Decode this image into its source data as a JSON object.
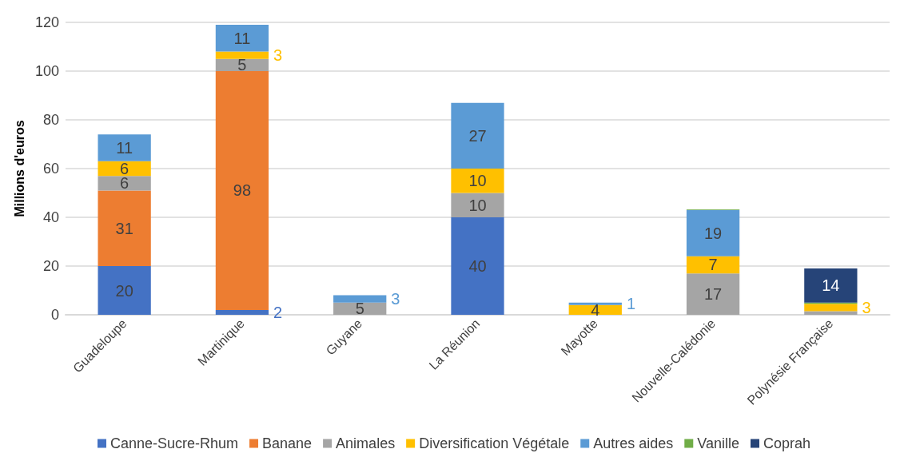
{
  "chart_data": {
    "type": "bar",
    "stacked": true,
    "ylabel": "Millions d'euros",
    "categories": [
      "Guadeloupe",
      "Martinique",
      "Guyane",
      "La Réunion",
      "Mayotte",
      "Nouvelle-Calédonie",
      "Polynésie Française"
    ],
    "series": [
      {
        "name": "Canne-Sucre-Rhum",
        "color": "#4472c4",
        "values": [
          20,
          2,
          null,
          40,
          null,
          null,
          null
        ],
        "value_labels": [
          "20",
          "2",
          null,
          "40",
          null,
          null,
          null
        ]
      },
      {
        "name": "Banane",
        "color": "#ed7d31",
        "values": [
          31,
          98,
          null,
          null,
          null,
          null,
          null
        ],
        "value_labels": [
          "31",
          "98",
          null,
          null,
          null,
          null,
          null
        ]
      },
      {
        "name": "Animales",
        "color": "#a5a5a5",
        "values": [
          6,
          5,
          5,
          10,
          null,
          17,
          1.5
        ],
        "value_labels": [
          "6",
          "5",
          "5",
          "10",
          null,
          "17",
          null
        ]
      },
      {
        "name": "Diversification Végétale",
        "color": "#ffc000",
        "values": [
          6,
          3,
          null,
          10,
          4,
          7,
          3
        ],
        "value_labels": [
          "6",
          "3",
          null,
          "10",
          "4",
          "7",
          "3"
        ]
      },
      {
        "name": "Autres aides",
        "color": "#5b9bd5",
        "values": [
          11,
          11,
          3,
          27,
          1,
          19,
          null
        ],
        "value_labels": [
          "11",
          "11",
          "3",
          "27",
          "1",
          "19",
          null
        ]
      },
      {
        "name": "Vanille",
        "color": "#70ad47",
        "values": [
          null,
          null,
          null,
          null,
          null,
          0.3,
          0.5
        ],
        "value_labels": [
          null,
          null,
          null,
          null,
          null,
          null,
          null
        ]
      },
      {
        "name": "Coprah",
        "color": "#264478",
        "values": [
          null,
          null,
          null,
          null,
          null,
          null,
          14
        ],
        "value_labels": [
          null,
          null,
          null,
          null,
          null,
          null,
          "14"
        ]
      }
    ],
    "ylim": [
      0,
      120
    ],
    "yticks": [
      0,
      20,
      40,
      60,
      80,
      100,
      120
    ],
    "grid": "y",
    "legend": "bottom"
  }
}
